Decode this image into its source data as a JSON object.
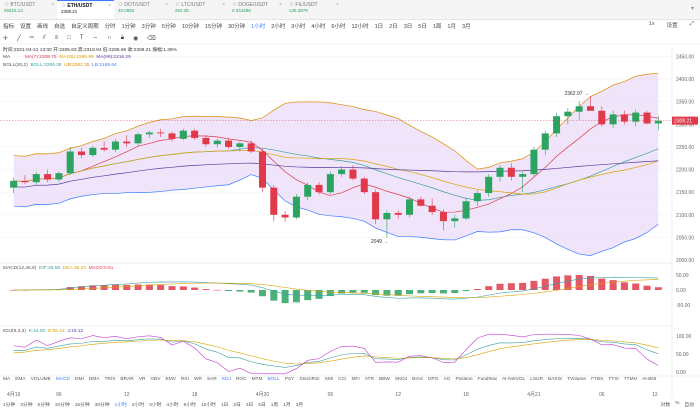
{
  "tickers": [
    {
      "symbol": "BTC/USDT",
      "price": "55615.13",
      "dir": "up"
    },
    {
      "symbol": "ETH/USDT",
      "price": "2308.21",
      "dir": "active"
    },
    {
      "symbol": "DOT/USDT",
      "price": "40.0892",
      "dir": "up"
    },
    {
      "symbol": "LTC/USDT",
      "price": "263.38",
      "dir": "up"
    },
    {
      "symbol": "DOGE/USDT",
      "price": "0.344488",
      "dir": "up"
    },
    {
      "symbol": "FIL/USDT",
      "price": "136.3879",
      "dir": "up"
    }
  ],
  "tabs_right": "▾",
  "toolbar": {
    "items": [
      "指标",
      "设置",
      "画线",
      "自选",
      "自定义周期",
      "分时",
      "1分钟",
      "3分钟",
      "5分钟",
      "10分钟",
      "15分钟",
      "30分钟",
      "1小时",
      "2小时",
      "3小时",
      "4小时",
      "6小时",
      "12小时",
      "1日",
      "2日",
      "3日",
      "5日",
      "1周",
      "1月",
      "3月"
    ],
    "active": "1小时",
    "right": [
      "1x",
      "设置",
      "⤢"
    ]
  },
  "info": {
    "ohlc": "时间:2021-04-21 13:00  开:2305.63  高:2318.94  低:2286.96  收:2308.21  振幅:1.39%",
    "ma_label": "MA",
    "ma7": "MA(7):2308.75",
    "ma25": "MA(25):2285.96",
    "ma99": "MA(99):2216.29",
    "boll_label": "BOLL(20,2)",
    "boll_m": "BOLL:2299.38",
    "boll_u": "UB:2362.35",
    "boll_l": "LB:2155.64",
    "macd_label": "MACD(12,26,9)",
    "dif": "DIF:35.58",
    "dea": "DEA:35.33",
    "macd": "MACD:0.51",
    "kdj_label": "KDJ(9,3,3)",
    "k": "K:44.00",
    "d": "D:56.44",
    "j": "J:19.12"
  },
  "price_axis": [
    "2450.00",
    "2400.00",
    "2350.00",
    "2300.00",
    "2250.00",
    "2200.00",
    "2150.00",
    "2100.00",
    "2050.00",
    "2000.00"
  ],
  "current_price": "2308.21",
  "high_label": "2362.97",
  "low_label": "2049",
  "macd_axis": [
    "50.00",
    "0.00",
    "-50.00"
  ],
  "kdj_axis": [
    "100.00",
    "50.00",
    "0.00"
  ],
  "time_axis": [
    "4月19",
    "06",
    "12",
    "18",
    "4月20",
    "06",
    "12",
    "18",
    "4月21",
    "06",
    "12"
  ],
  "indicators": [
    "MA",
    "EMA",
    "VOLUME",
    "MACD",
    "DMI",
    "DMA",
    "TRIX",
    "BRAR",
    "VR",
    "OBV",
    "EMV",
    "RSI",
    "WR",
    "SAR",
    "KDJ",
    "ROC",
    "MTM",
    "BOLL",
    "PSY",
    "StochRSI",
    "SMI",
    "CCI",
    "MFI",
    "ATR",
    "BBW",
    "SKDJ",
    "BIAS",
    "DPO",
    "AO",
    "Position",
    "Fundflow",
    "AI-NetVOL",
    "LSUR",
    "BASIS",
    "TVolume",
    "FTBS",
    "TTSI",
    "TTMU",
    "AI-BNI"
  ],
  "active_indicators": [
    "MACD",
    "KDJ",
    "BOLL"
  ],
  "bottom": {
    "periods": [
      "1分钟",
      "3分钟",
      "5分钟",
      "10分钟",
      "15分钟",
      "30分钟",
      "1小时",
      "2小时",
      "3小时",
      "4小时",
      "6小时",
      "12小时",
      "1日",
      "2日",
      "3日",
      "5日",
      "1周",
      "1月",
      "3月"
    ],
    "active": "1小时",
    "right": [
      "对数",
      "%",
      "自动"
    ]
  },
  "chart_data": {
    "type": "candlestick",
    "series": [
      {
        "name": "ETH/USDT 1h",
        "ohlc": [
          [
            2160,
            2182,
            2148,
            2175
          ],
          [
            2175,
            2188,
            2168,
            2172
          ],
          [
            2172,
            2195,
            2165,
            2190
          ],
          [
            2190,
            2200,
            2172,
            2178
          ],
          [
            2178,
            2196,
            2172,
            2192
          ],
          [
            2192,
            2250,
            2188,
            2240
          ],
          [
            2240,
            2248,
            2225,
            2232
          ],
          [
            2232,
            2252,
            2228,
            2248
          ],
          [
            2248,
            2262,
            2240,
            2244
          ],
          [
            2244,
            2268,
            2238,
            2262
          ],
          [
            2262,
            2276,
            2250,
            2258
          ],
          [
            2258,
            2282,
            2252,
            2278
          ],
          [
            2278,
            2286,
            2270,
            2282
          ],
          [
            2282,
            2290,
            2272,
            2280
          ],
          [
            2280,
            2284,
            2262,
            2268
          ],
          [
            2268,
            2290,
            2265,
            2286
          ],
          [
            2286,
            2290,
            2266,
            2270
          ],
          [
            2270,
            2276,
            2250,
            2256
          ],
          [
            2256,
            2268,
            2248,
            2264
          ],
          [
            2264,
            2270,
            2245,
            2250
          ],
          [
            2250,
            2262,
            2240,
            2258
          ],
          [
            2258,
            2264,
            2236,
            2240
          ],
          [
            2240,
            2246,
            2150,
            2160
          ],
          [
            2160,
            2166,
            2085,
            2100
          ],
          [
            2100,
            2108,
            2085,
            2094
          ],
          [
            2094,
            2146,
            2090,
            2140
          ],
          [
            2140,
            2172,
            2132,
            2166
          ],
          [
            2166,
            2172,
            2145,
            2150
          ],
          [
            2150,
            2196,
            2146,
            2190
          ],
          [
            2190,
            2208,
            2184,
            2200
          ],
          [
            2200,
            2210,
            2176,
            2180
          ],
          [
            2180,
            2184,
            2146,
            2150
          ],
          [
            2150,
            2156,
            2080,
            2090
          ],
          [
            2090,
            2110,
            2049,
            2104
          ],
          [
            2104,
            2110,
            2092,
            2100
          ],
          [
            2100,
            2140,
            2094,
            2134
          ],
          [
            2134,
            2140,
            2118,
            2120
          ],
          [
            2120,
            2136,
            2100,
            2106
          ],
          [
            2106,
            2112,
            2066,
            2086
          ],
          [
            2086,
            2100,
            2072,
            2092
          ],
          [
            2092,
            2136,
            2088,
            2130
          ],
          [
            2130,
            2154,
            2120,
            2148
          ],
          [
            2148,
            2190,
            2140,
            2184
          ],
          [
            2184,
            2210,
            2174,
            2204
          ],
          [
            2204,
            2214,
            2176,
            2184
          ],
          [
            2184,
            2196,
            2150,
            2190
          ],
          [
            2190,
            2250,
            2186,
            2244
          ],
          [
            2244,
            2286,
            2232,
            2280
          ],
          [
            2280,
            2326,
            2272,
            2318
          ],
          [
            2318,
            2336,
            2300,
            2328
          ],
          [
            2328,
            2352,
            2310,
            2340
          ],
          [
            2340,
            2363,
            2330,
            2330
          ],
          [
            2330,
            2340,
            2295,
            2300
          ],
          [
            2300,
            2330,
            2292,
            2322
          ],
          [
            2322,
            2330,
            2300,
            2306
          ],
          [
            2306,
            2332,
            2296,
            2326
          ],
          [
            2326,
            2330,
            2300,
            2302
          ],
          [
            2302,
            2318,
            2287,
            2308
          ]
        ]
      }
    ],
    "ma7_color": "#e0394a",
    "ma25_color": "#d9a300",
    "ma99_color": "#5a3aa0",
    "up_color": "#2ba361",
    "down_color": "#e0394a",
    "boll_fill": "#e8d9f7",
    "ylim": [
      2000,
      2460
    ]
  }
}
